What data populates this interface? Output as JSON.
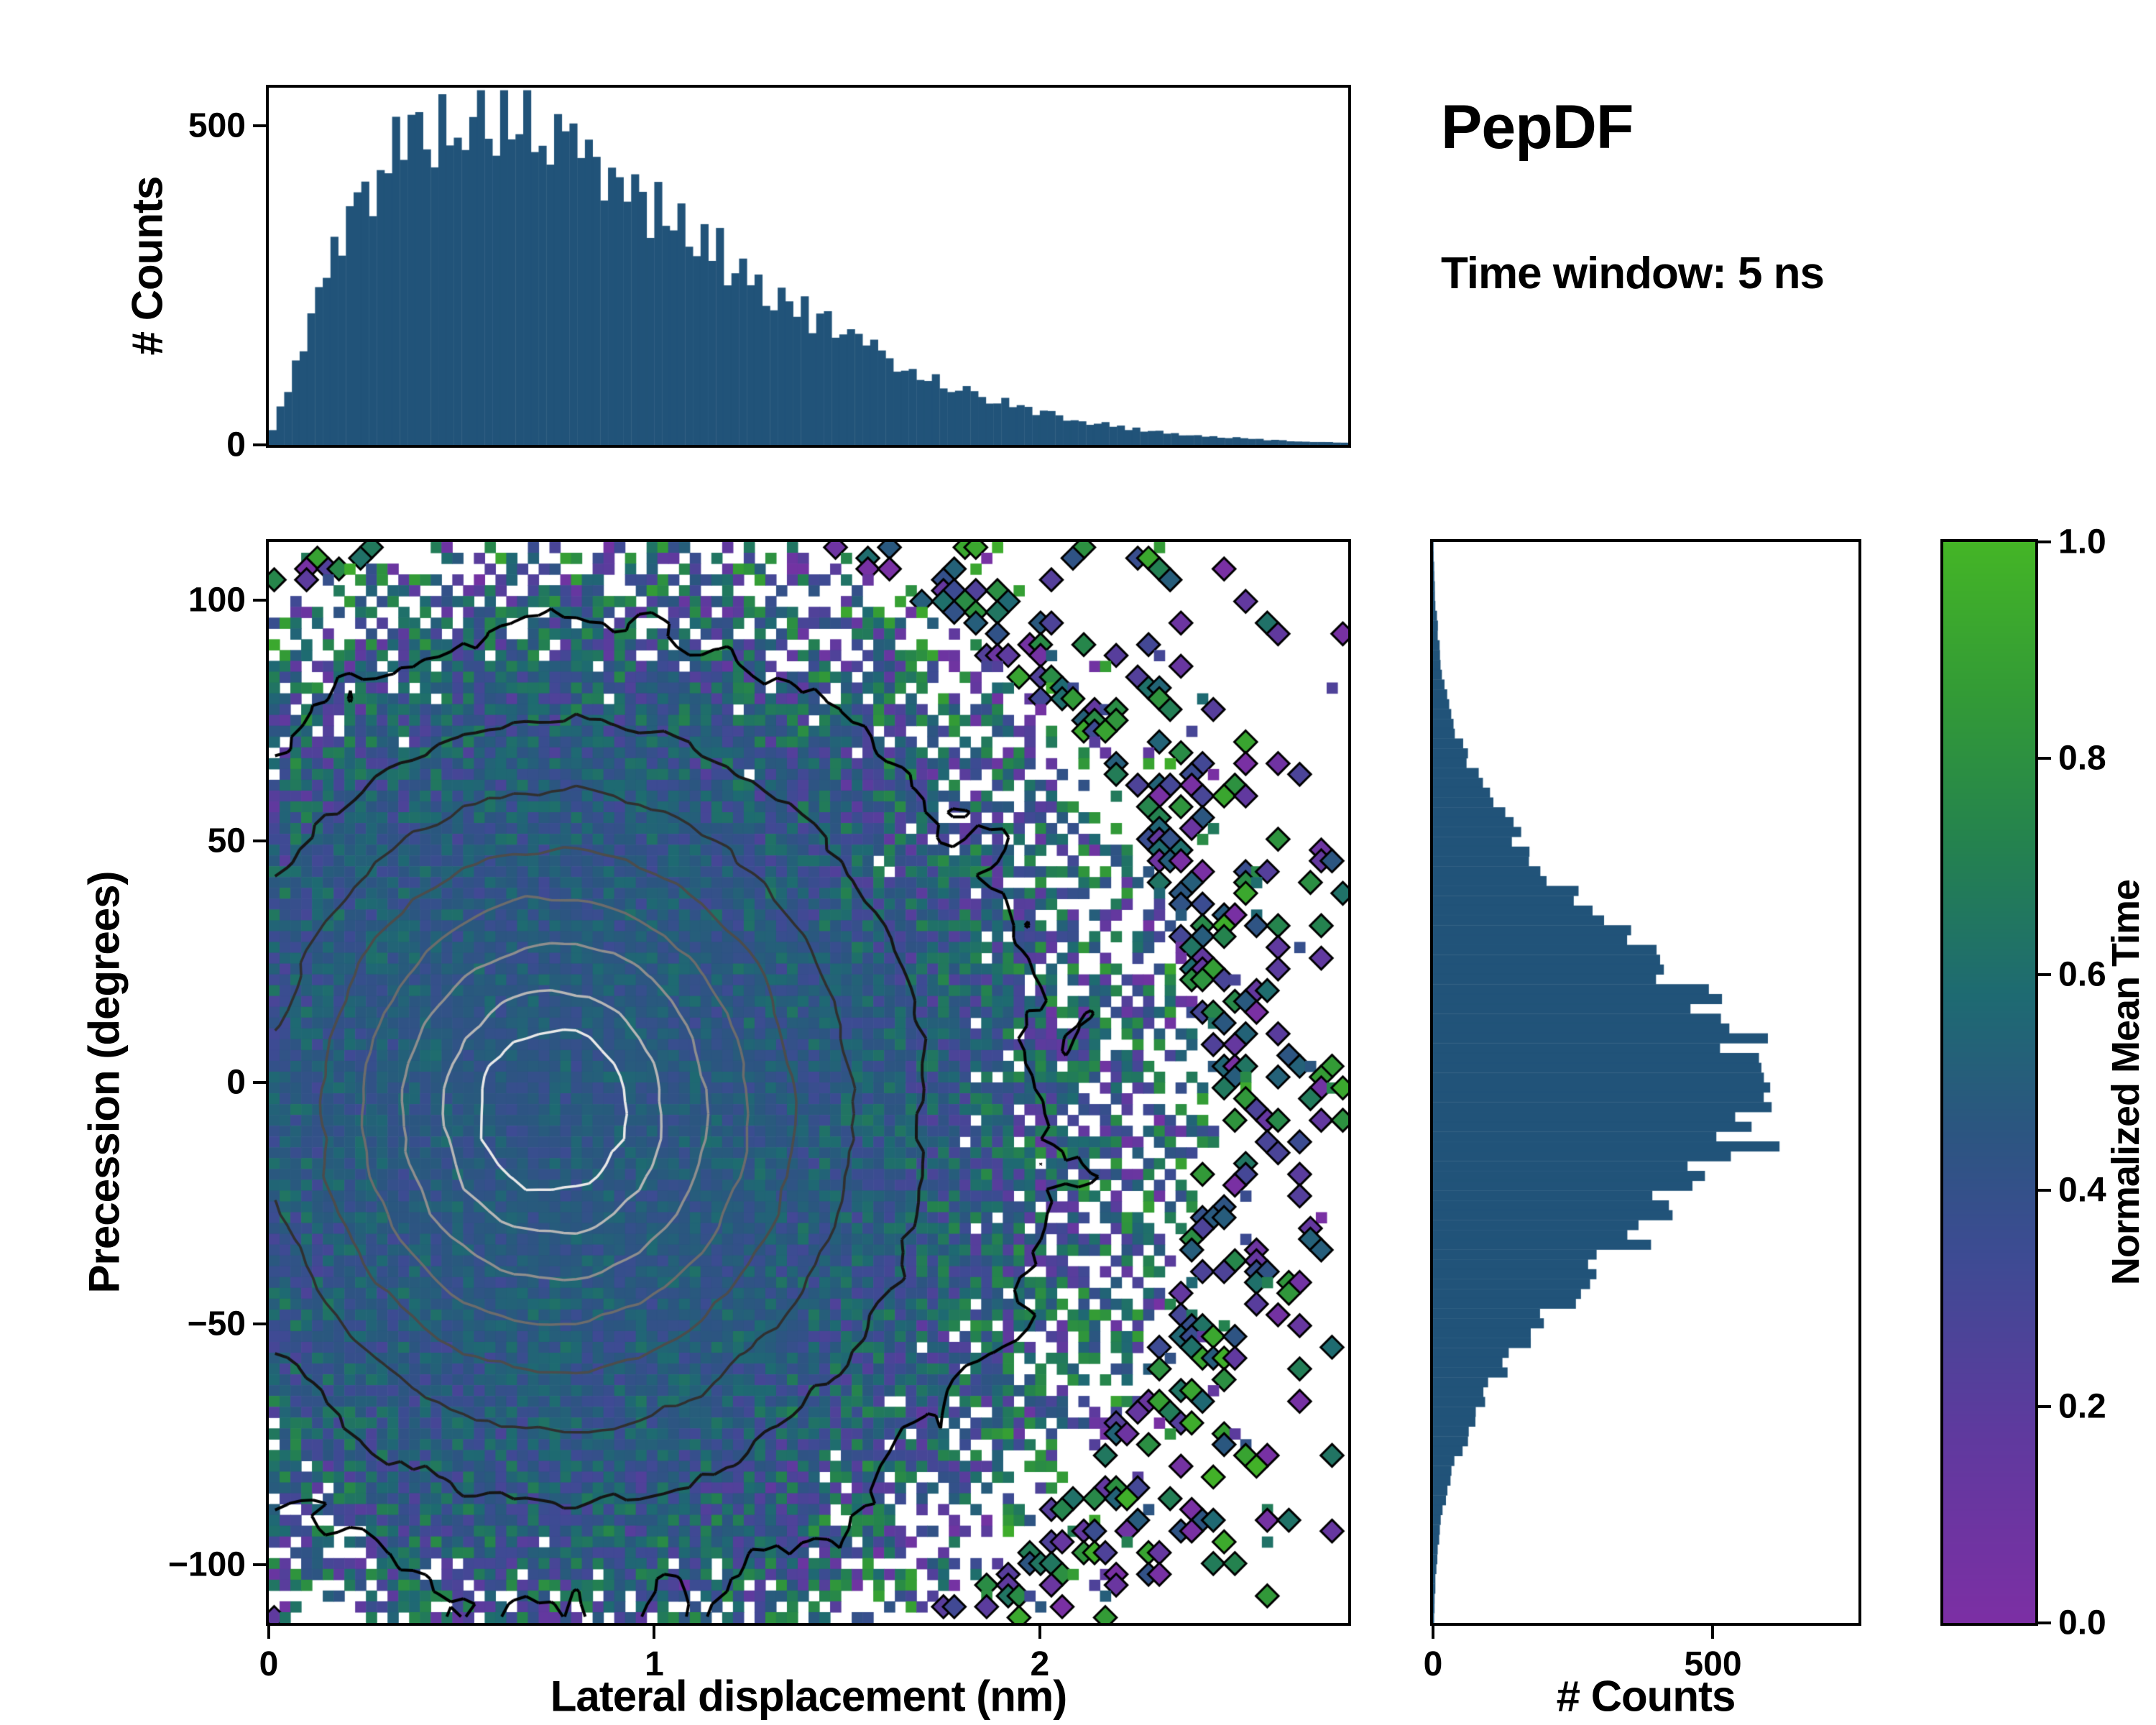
{
  "header": {
    "title": "PepDF",
    "subtitle": "Time window: 5 ns"
  },
  "chart_data": {
    "type": "heatmap",
    "title": "PepDF",
    "annotation": "Time window: 5 ns",
    "layout": "central 2D histogram with density contours, top and right marginal histograms, right colorbar",
    "colorbar": {
      "label": "Normalized Mean Time",
      "tick_values": [
        0,
        0.2,
        0.4,
        0.6,
        0.8,
        1
      ],
      "tick_labels": [
        "0.0",
        "0.2",
        "0.4",
        "0.6",
        "0.8",
        "1.0"
      ],
      "stops": [
        {
          "t": 0.0,
          "color": "#7c2fa4"
        },
        {
          "t": 0.18,
          "color": "#5e3a9e"
        },
        {
          "t": 0.34,
          "color": "#3d4b93"
        },
        {
          "t": 0.46,
          "color": "#2b5680"
        },
        {
          "t": 0.58,
          "color": "#1e6a72"
        },
        {
          "t": 0.72,
          "color": "#24824f"
        },
        {
          "t": 0.86,
          "color": "#339b36"
        },
        {
          "t": 1.0,
          "color": "#44b526"
        }
      ]
    },
    "main_panel": {
      "type": "heatmap",
      "xlabel": "Lateral displacement (nm)",
      "ylabel": "Precession (degrees)",
      "xlim": [
        0,
        2.8
      ],
      "ylim": [
        -112,
        112
      ],
      "xtick_values": [
        0,
        1,
        2
      ],
      "xtick_labels": [
        "0",
        "1",
        "2"
      ],
      "ytick_values": [
        -100,
        -50,
        0,
        50,
        100
      ],
      "ytick_labels": [
        "−100",
        "−50",
        "0",
        "50",
        "100"
      ],
      "bins_x": 100,
      "bins_y": 100,
      "density_model": {
        "x_mean": 0.72,
        "x_sigma": 0.42,
        "y_mean": -6,
        "y_sigma": 38,
        "tail_weight": 0.15,
        "tail_x_mean": 1.0,
        "tail_x_sigma": 0.62,
        "tail_y_sigma": 50,
        "peak_counts_per_bin": 48,
        "mean_time_center": 0.47
      },
      "contour_levels": [
        0.04,
        0.12,
        0.24,
        0.38,
        0.52,
        0.66,
        0.8,
        0.9
      ],
      "contour_colors": [
        "#000000",
        "#161616",
        "#303030",
        "#4c4c4c",
        "#6c6c6c",
        "#8e8e8e",
        "#b6b6b6",
        "#e8e8e8"
      ]
    },
    "top_histogram": {
      "type": "bar",
      "ylabel": "# Counts",
      "xlim": [
        0,
        2.8
      ],
      "ylim": [
        0,
        560
      ],
      "ytick_values": [
        0,
        500
      ],
      "ytick_labels": [
        "0",
        "500"
      ],
      "bins": 140,
      "bar_color": "#215379",
      "envelope_x": [
        0,
        0.05,
        0.1,
        0.15,
        0.2,
        0.25,
        0.3,
        0.35,
        0.4,
        0.45,
        0.5,
        0.55,
        0.6,
        0.7,
        0.8,
        0.9,
        1,
        1.1,
        1.2,
        1.3,
        1.4,
        1.5,
        1.6,
        1.7,
        1.8,
        1.9,
        2,
        2.1,
        2.2,
        2.3,
        2.4,
        2.5,
        2.6,
        2.7,
        2.8
      ],
      "envelope_counts": [
        5,
        90,
        185,
        265,
        335,
        395,
        445,
        475,
        495,
        508,
        516,
        520,
        512,
        488,
        452,
        415,
        372,
        330,
        285,
        243,
        204,
        168,
        137,
        110,
        87,
        67,
        51,
        39,
        29,
        21,
        15,
        11,
        8,
        5,
        3
      ]
    },
    "right_histogram": {
      "type": "bar",
      "xlabel": "# Counts",
      "ylim": [
        -112,
        112
      ],
      "xlim": [
        0,
        760
      ],
      "xtick_values": [
        0,
        500
      ],
      "xtick_labels": [
        "0",
        "500"
      ],
      "bins": 110,
      "bar_color": "#215379",
      "envelope_y": [
        -110,
        -100,
        -90,
        -80,
        -70,
        -60,
        -50,
        -40,
        -30,
        -20,
        -15,
        -10,
        -5,
        0,
        5,
        10,
        15,
        20,
        30,
        40,
        50,
        60,
        70,
        80,
        90,
        100,
        110
      ],
      "envelope_counts": [
        2,
        6,
        16,
        36,
        72,
        122,
        192,
        282,
        385,
        480,
        535,
        585,
        628,
        640,
        612,
        565,
        505,
        440,
        335,
        235,
        152,
        90,
        48,
        24,
        11,
        4,
        1
      ]
    }
  }
}
